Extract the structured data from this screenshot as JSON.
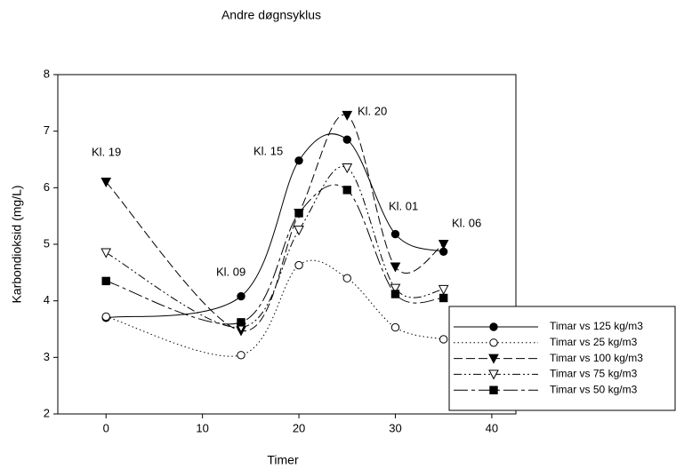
{
  "chart_data": {
    "type": "line",
    "title": "Andre døgnsyklus",
    "x_label": "Timer",
    "y_label": "Karbondioksid (mg/L)",
    "xlim": [
      -5,
      42.5
    ],
    "xticks": [
      0,
      10,
      20,
      30,
      40
    ],
    "ylim": [
      2,
      8
    ],
    "yticks": [
      2,
      3,
      4,
      5,
      6,
      7,
      8
    ],
    "x": [
      0,
      14,
      20,
      25,
      30,
      35
    ],
    "series": [
      {
        "name": "Timar vs 125 kg/m3",
        "color": "#000000",
        "dash": "solid",
        "marker": "circle-filled",
        "values": [
          3.7,
          4.08,
          6.48,
          6.85,
          5.18,
          4.87
        ]
      },
      {
        "name": "Timar vs 25 kg/m3",
        "color": "#000000",
        "dash": "dotted",
        "marker": "circle-open",
        "values": [
          3.72,
          3.04,
          4.63,
          4.4,
          3.53,
          3.32
        ]
      },
      {
        "name": "Timar vs 100 kg/m3",
        "color": "#000000",
        "dash": "dashed",
        "marker": "triangle-filled",
        "values": [
          6.1,
          3.47,
          5.55,
          7.28,
          4.6,
          5.0
        ]
      },
      {
        "name": "Timar vs 75 kg/m3",
        "color": "#000000",
        "dash": "dash-dot-dot",
        "marker": "triangle-open",
        "values": [
          4.85,
          3.53,
          5.25,
          6.35,
          4.22,
          4.2
        ]
      },
      {
        "name": "Timar vs 50 kg/m3",
        "color": "#000000",
        "dash": "long-dash",
        "marker": "square-filled",
        "values": [
          4.35,
          3.62,
          5.55,
          5.96,
          4.12,
          4.05
        ]
      }
    ],
    "annotations": [
      "Kl. 19",
      "Kl. 09",
      "Kl. 15",
      "Kl. 20",
      "Kl. 01",
      "Kl. 06"
    ],
    "legend": "lower right",
    "grid": false
  }
}
